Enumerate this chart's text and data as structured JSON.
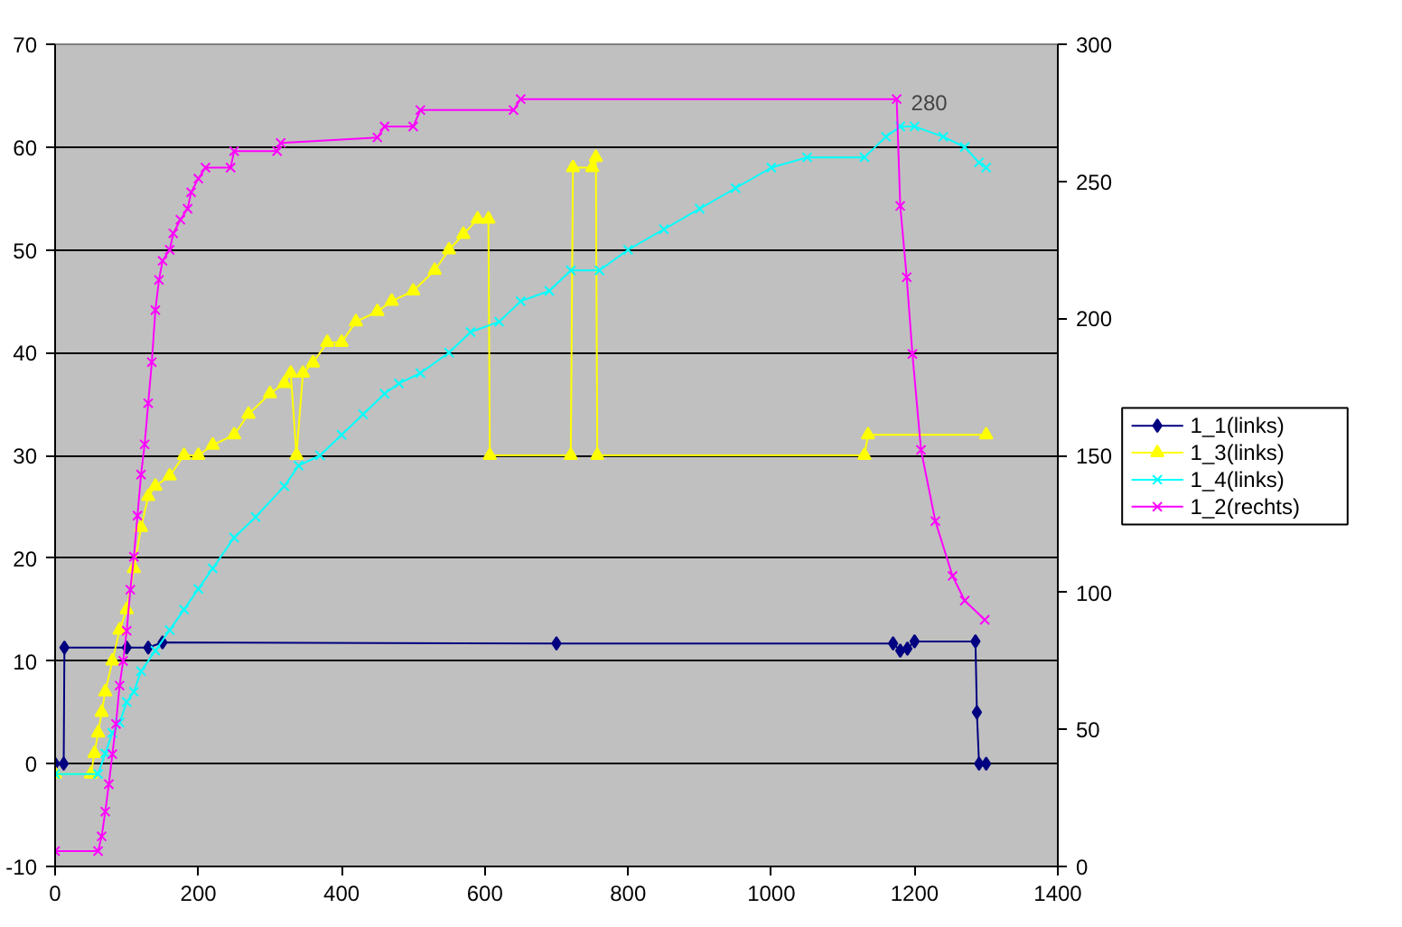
{
  "chart_data": {
    "type": "line",
    "xlim": [
      0,
      1400
    ],
    "xticks": [
      0,
      200,
      400,
      600,
      800,
      1000,
      1200,
      1400
    ],
    "ylim": [
      -10,
      70
    ],
    "yticks": [
      -10,
      0,
      10,
      20,
      30,
      40,
      50,
      60,
      70
    ],
    "y2lim": [
      0,
      300
    ],
    "y2ticks": [
      0,
      50,
      100,
      150,
      200,
      250,
      300
    ],
    "grid": "y",
    "legend": "right",
    "line_style": "solid",
    "series": [
      {
        "name": "1_1(links)",
        "color": "#000080",
        "marker": "diamond",
        "x": [
          0,
          12,
          13,
          100,
          130,
          150,
          700,
          1170,
          1180,
          1190,
          1200,
          1285,
          1287,
          1290,
          1300
        ],
        "values": [
          0,
          0,
          11.3,
          11.3,
          11.3,
          11.8,
          11.7,
          11.7,
          11,
          11.2,
          11.9,
          11.9,
          5,
          0,
          0
        ]
      },
      {
        "name": "1_3(links)",
        "color": "#ffff00",
        "marker": "triangle",
        "x": [
          0,
          50,
          55,
          60,
          65,
          70,
          80,
          90,
          100,
          110,
          120,
          130,
          140,
          160,
          180,
          200,
          220,
          250,
          270,
          300,
          320,
          329,
          337,
          346,
          360,
          380,
          400,
          420,
          450,
          470,
          500,
          530,
          550,
          570,
          590,
          605,
          607,
          720,
          723,
          750,
          755,
          757,
          1130,
          1135,
          1300
        ],
        "values": [
          -1,
          -1,
          1,
          3,
          5,
          7,
          10,
          13,
          15,
          19,
          23,
          26,
          27,
          28,
          30,
          30,
          31,
          32,
          34,
          36,
          37,
          38,
          30,
          38,
          39,
          41,
          41,
          43,
          44,
          45,
          46,
          48,
          50,
          51.5,
          53,
          53,
          30,
          30,
          58,
          58,
          59,
          30,
          30,
          32,
          32
        ]
      },
      {
        "name": "1_4(links)",
        "color": "#00ffff",
        "marker": "cross",
        "x": [
          0,
          60,
          70,
          80,
          90,
          100,
          110,
          120,
          140,
          160,
          180,
          200,
          220,
          250,
          280,
          320,
          340,
          370,
          400,
          430,
          460,
          480,
          510,
          550,
          580,
          620,
          650,
          690,
          720,
          760,
          800,
          850,
          900,
          950,
          1000,
          1050,
          1130,
          1160,
          1180,
          1200,
          1240,
          1270,
          1290,
          1300
        ],
        "values": [
          -1,
          -1,
          1,
          3,
          4,
          6,
          7,
          9,
          11,
          13,
          15,
          17,
          19,
          22,
          24,
          27,
          29,
          30,
          32,
          34,
          36,
          37,
          38,
          40,
          42,
          43,
          45,
          46,
          48,
          48,
          50,
          52,
          54,
          56,
          58,
          59,
          59,
          61,
          62,
          62,
          61,
          60,
          58.5,
          58
        ]
      },
      {
        "name": "1_2(rechts)",
        "color": "#ff00ff",
        "marker": "cross",
        "axis": "y2",
        "value_labels": [
          null,
          null,
          null,
          null,
          null,
          null,
          null,
          null,
          null,
          null,
          null,
          null,
          null,
          null,
          null,
          null,
          null,
          null,
          null,
          null,
          null,
          null,
          null,
          null,
          null,
          null,
          null,
          null,
          null,
          null,
          null,
          null,
          null,
          null,
          null,
          null,
          null,
          "280",
          null,
          null,
          null,
          null,
          null,
          null,
          null,
          null
        ],
        "x": [
          0,
          60,
          65,
          70,
          75,
          80,
          85,
          90,
          95,
          100,
          105,
          110,
          115,
          120,
          125,
          130,
          135,
          140,
          145,
          150,
          160,
          165,
          175,
          185,
          190,
          200,
          210,
          245,
          250,
          310,
          315,
          450,
          460,
          500,
          510,
          640,
          650,
          1175,
          1180,
          1189,
          1197,
          1209,
          1229,
          1253,
          1270,
          1298
        ],
        "values": [
          5.6,
          5.6,
          11,
          20,
          30,
          41,
          52,
          66,
          75,
          86,
          101,
          113,
          128,
          143,
          154,
          169,
          184,
          203,
          214,
          221,
          225,
          231,
          236,
          240,
          246,
          251,
          255,
          255,
          261,
          261,
          264,
          266,
          270,
          270,
          276,
          276,
          280,
          280,
          241,
          215,
          187,
          152,
          126,
          106,
          97,
          90
        ]
      }
    ]
  }
}
